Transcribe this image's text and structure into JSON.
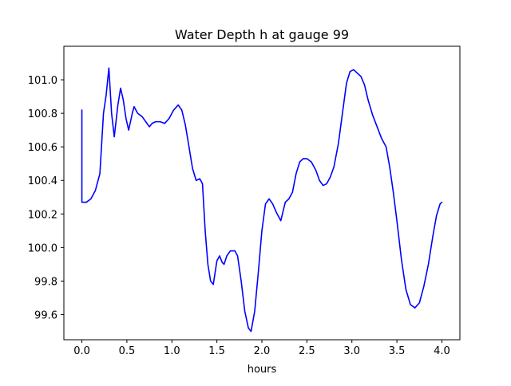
{
  "chart_data": {
    "type": "line",
    "title": "Water Depth h at gauge 99",
    "xlabel": "hours",
    "ylabel": "",
    "xlim": [
      -0.2,
      4.2
    ],
    "ylim": [
      99.45,
      101.2
    ],
    "grid": false,
    "xticks": [
      0.0,
      0.5,
      1.0,
      1.5,
      2.0,
      2.5,
      3.0,
      3.5,
      4.0
    ],
    "xtick_labels": [
      "0.0",
      "0.5",
      "1.0",
      "1.5",
      "2.0",
      "2.5",
      "3.0",
      "3.5",
      "4.0"
    ],
    "yticks": [
      99.6,
      99.8,
      100.0,
      100.2,
      100.4,
      100.6,
      100.8,
      101.0
    ],
    "ytick_labels": [
      "99.6",
      "99.8",
      "100.0",
      "100.2",
      "100.4",
      "100.6",
      "100.8",
      "101.0"
    ],
    "series": [
      {
        "color": "#0000ff",
        "points": [
          [
            0.0,
            100.82
          ],
          [
            0.0,
            100.27
          ],
          [
            0.05,
            100.27
          ],
          [
            0.1,
            100.29
          ],
          [
            0.15,
            100.34
          ],
          [
            0.2,
            100.44
          ],
          [
            0.24,
            100.8
          ],
          [
            0.27,
            100.91
          ],
          [
            0.3,
            101.07
          ],
          [
            0.33,
            100.8
          ],
          [
            0.36,
            100.66
          ],
          [
            0.4,
            100.85
          ],
          [
            0.43,
            100.95
          ],
          [
            0.46,
            100.88
          ],
          [
            0.49,
            100.77
          ],
          [
            0.52,
            100.7
          ],
          [
            0.56,
            100.8
          ],
          [
            0.58,
            100.84
          ],
          [
            0.62,
            100.8
          ],
          [
            0.67,
            100.78
          ],
          [
            0.71,
            100.75
          ],
          [
            0.75,
            100.72
          ],
          [
            0.78,
            100.74
          ],
          [
            0.82,
            100.75
          ],
          [
            0.87,
            100.75
          ],
          [
            0.92,
            100.74
          ],
          [
            0.97,
            100.77
          ],
          [
            1.02,
            100.82
          ],
          [
            1.07,
            100.85
          ],
          [
            1.11,
            100.82
          ],
          [
            1.15,
            100.73
          ],
          [
            1.19,
            100.6
          ],
          [
            1.23,
            100.47
          ],
          [
            1.27,
            100.4
          ],
          [
            1.31,
            100.41
          ],
          [
            1.34,
            100.38
          ],
          [
            1.37,
            100.1
          ],
          [
            1.4,
            99.9
          ],
          [
            1.43,
            99.8
          ],
          [
            1.46,
            99.78
          ],
          [
            1.5,
            99.92
          ],
          [
            1.53,
            99.95
          ],
          [
            1.56,
            99.91
          ],
          [
            1.58,
            99.9
          ],
          [
            1.61,
            99.95
          ],
          [
            1.65,
            99.98
          ],
          [
            1.7,
            99.98
          ],
          [
            1.73,
            99.95
          ],
          [
            1.77,
            99.8
          ],
          [
            1.81,
            99.62
          ],
          [
            1.85,
            99.52
          ],
          [
            1.88,
            99.5
          ],
          [
            1.92,
            99.62
          ],
          [
            1.96,
            99.85
          ],
          [
            2.0,
            100.1
          ],
          [
            2.04,
            100.26
          ],
          [
            2.08,
            100.29
          ],
          [
            2.12,
            100.26
          ],
          [
            2.16,
            100.21
          ],
          [
            2.21,
            100.16
          ],
          [
            2.26,
            100.27
          ],
          [
            2.3,
            100.29
          ],
          [
            2.34,
            100.33
          ],
          [
            2.38,
            100.44
          ],
          [
            2.42,
            100.51
          ],
          [
            2.46,
            100.53
          ],
          [
            2.5,
            100.53
          ],
          [
            2.55,
            100.51
          ],
          [
            2.6,
            100.46
          ],
          [
            2.64,
            100.4
          ],
          [
            2.68,
            100.37
          ],
          [
            2.72,
            100.38
          ],
          [
            2.76,
            100.42
          ],
          [
            2.8,
            100.48
          ],
          [
            2.85,
            100.62
          ],
          [
            2.9,
            100.82
          ],
          [
            2.94,
            100.98
          ],
          [
            2.98,
            101.05
          ],
          [
            3.02,
            101.06
          ],
          [
            3.06,
            101.04
          ],
          [
            3.1,
            101.02
          ],
          [
            3.14,
            100.97
          ],
          [
            3.18,
            100.88
          ],
          [
            3.23,
            100.79
          ],
          [
            3.28,
            100.72
          ],
          [
            3.33,
            100.65
          ],
          [
            3.38,
            100.6
          ],
          [
            3.42,
            100.48
          ],
          [
            3.46,
            100.33
          ],
          [
            3.5,
            100.16
          ],
          [
            3.55,
            99.93
          ],
          [
            3.6,
            99.75
          ],
          [
            3.65,
            99.66
          ],
          [
            3.7,
            99.64
          ],
          [
            3.75,
            99.67
          ],
          [
            3.8,
            99.77
          ],
          [
            3.85,
            99.9
          ],
          [
            3.9,
            100.07
          ],
          [
            3.94,
            100.19
          ],
          [
            3.98,
            100.26
          ],
          [
            4.0,
            100.27
          ]
        ]
      }
    ]
  }
}
